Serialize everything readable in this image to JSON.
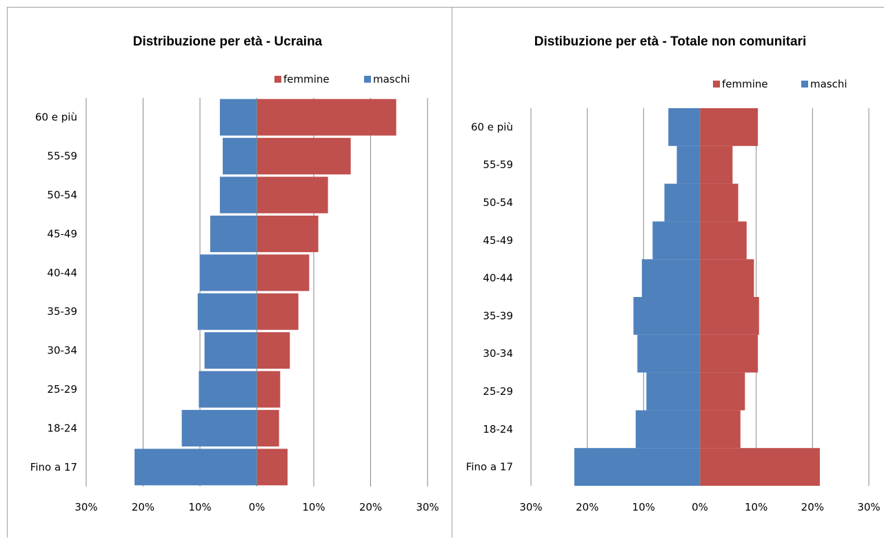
{
  "charts": [
    {
      "title": "Distribuzione per età - Ucraina",
      "legend": [
        {
          "label": "femmine",
          "color": "#c0504d"
        },
        {
          "label": "maschi",
          "color": "#4f81bd"
        }
      ],
      "x_tick_labels": [
        "30%",
        "20%",
        "10%",
        "0%",
        "10%",
        "20%",
        "30%"
      ]
    },
    {
      "title": "Distibuzione per età - Totale non comunitari",
      "legend": [
        {
          "label": "femmine",
          "color": "#c0504d"
        },
        {
          "label": "maschi",
          "color": "#4f81bd"
        }
      ],
      "x_tick_labels": [
        "30%",
        "20%",
        "10%",
        "0%",
        "10%",
        "20%",
        "30%"
      ]
    }
  ],
  "chart_data": [
    {
      "type": "bar",
      "orientation": "horizontal",
      "title": "Distribuzione per età - Ucraina",
      "categories": [
        "60 e più",
        "55-59",
        "50-54",
        "45-49",
        "40-44",
        "35-39",
        "30-34",
        "25-29",
        "18-24",
        "Fino a 17"
      ],
      "series": [
        {
          "name": "femmine",
          "color": "#c0504d",
          "values": [
            24.5,
            16.5,
            12.5,
            10.8,
            9.2,
            7.3,
            5.8,
            4.1,
            3.9,
            5.4
          ]
        },
        {
          "name": "maschi",
          "color": "#4f81bd",
          "values": [
            6.5,
            6.0,
            6.5,
            8.2,
            10.0,
            10.4,
            9.2,
            10.2,
            13.2,
            21.5
          ]
        }
      ],
      "xlim": [
        -30,
        30
      ],
      "x_ticks": [
        -30,
        -20,
        -10,
        0,
        10,
        20,
        30
      ],
      "x_tick_labels": [
        "30%",
        "20%",
        "10%",
        "0%",
        "10%",
        "20%",
        "30%"
      ],
      "grid": true,
      "legend_position": "top-right"
    },
    {
      "type": "bar",
      "orientation": "horizontal",
      "title": "Distibuzione per età - Totale non comunitari",
      "categories": [
        "60 e più",
        "55-59",
        "50-54",
        "45-49",
        "40-44",
        "35-39",
        "30-34",
        "25-29",
        "18-24",
        "Fino a 17"
      ],
      "series": [
        {
          "name": "femmine",
          "color": "#c0504d",
          "values": [
            10.3,
            5.8,
            6.8,
            8.3,
            9.6,
            10.5,
            10.3,
            8.0,
            7.2,
            21.3
          ]
        },
        {
          "name": "maschi",
          "color": "#4f81bd",
          "values": [
            5.6,
            4.1,
            6.3,
            8.4,
            10.3,
            11.8,
            11.1,
            9.5,
            11.4,
            22.3
          ]
        }
      ],
      "xlim": [
        -30,
        30
      ],
      "x_ticks": [
        -30,
        -20,
        -10,
        0,
        10,
        20,
        30
      ],
      "x_tick_labels": [
        "30%",
        "20%",
        "10%",
        "0%",
        "10%",
        "20%",
        "30%"
      ],
      "grid": true,
      "legend_position": "top-right"
    }
  ]
}
